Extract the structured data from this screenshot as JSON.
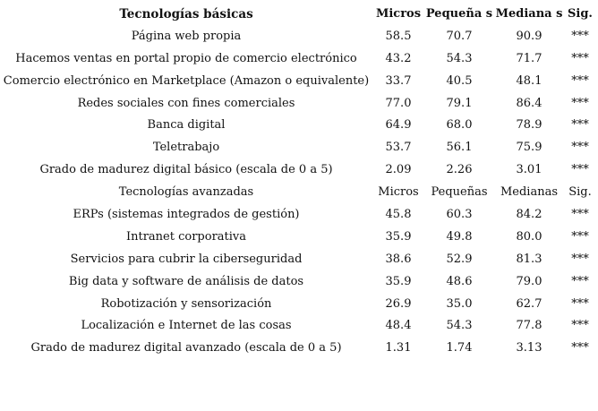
{
  "headers": {
    "label": "Tecnologías básicas",
    "micros": "Micros",
    "pequenas": "Pequeña s",
    "medianas": "Mediana s",
    "sig": "Sig."
  },
  "basic_rows": [
    {
      "label": "Página web propia",
      "micros": "58.5",
      "pequenas": "70.7",
      "medianas": "90.9",
      "sig": "***"
    },
    {
      "label": "Hacemos ventas en portal propio de comercio electrónico",
      "micros": "43.2",
      "pequenas": "54.3",
      "medianas": "71.7",
      "sig": "***"
    },
    {
      "label": "Comercio electrónico en Marketplace (Amazon o equivalente)",
      "micros": "33.7",
      "pequenas": "40.5",
      "medianas": "48.1",
      "sig": "***"
    },
    {
      "label": "Redes sociales con fines comerciales",
      "micros": "77.0",
      "pequenas": "79.1",
      "medianas": "86.4",
      "sig": "***"
    },
    {
      "label": "Banca digital",
      "micros": "64.9",
      "pequenas": "68.0",
      "medianas": "78.9",
      "sig": "***"
    },
    {
      "label": "Teletrabajo",
      "micros": "53.7",
      "pequenas": "56.1",
      "medianas": "75.9",
      "sig": "***"
    },
    {
      "label": "Grado de madurez digital básico (escala de 0 a 5)",
      "micros": "2.09",
      "pequenas": "2.26",
      "medianas": "3.01",
      "sig": "***"
    }
  ],
  "advanced_header": {
    "label": "Tecnologías avanzadas",
    "micros": "Micros",
    "pequenas": "Pequeñas",
    "medianas": "Medianas",
    "sig": "Sig."
  },
  "advanced_rows": [
    {
      "label": "ERPs (sistemas integrados de gestión)",
      "micros": "45.8",
      "pequenas": "60.3",
      "medianas": "84.2",
      "sig": "***"
    },
    {
      "label": "Intranet corporativa",
      "micros": "35.9",
      "pequenas": "49.8",
      "medianas": "80.0",
      "sig": "***"
    },
    {
      "label": "Servicios para cubrir la ciberseguridad",
      "micros": "38.6",
      "pequenas": "52.9",
      "medianas": "81.3",
      "sig": "***"
    },
    {
      "label": "Big data y software de análisis de datos",
      "micros": "35.9",
      "pequenas": "48.6",
      "medianas": "79.0",
      "sig": "***"
    },
    {
      "label": "Robotización y sensorización",
      "micros": "26.9",
      "pequenas": "35.0",
      "medianas": "62.7",
      "sig": "***"
    },
    {
      "label": "Localización e Internet de las cosas",
      "micros": "48.4",
      "pequenas": "54.3",
      "medianas": "77.8",
      "sig": "***"
    },
    {
      "label": "Grado de madurez digital avanzado (escala de 0 a 5)",
      "micros": "1.31",
      "pequenas": "1.74",
      "medianas": "3.13",
      "sig": "***"
    }
  ]
}
